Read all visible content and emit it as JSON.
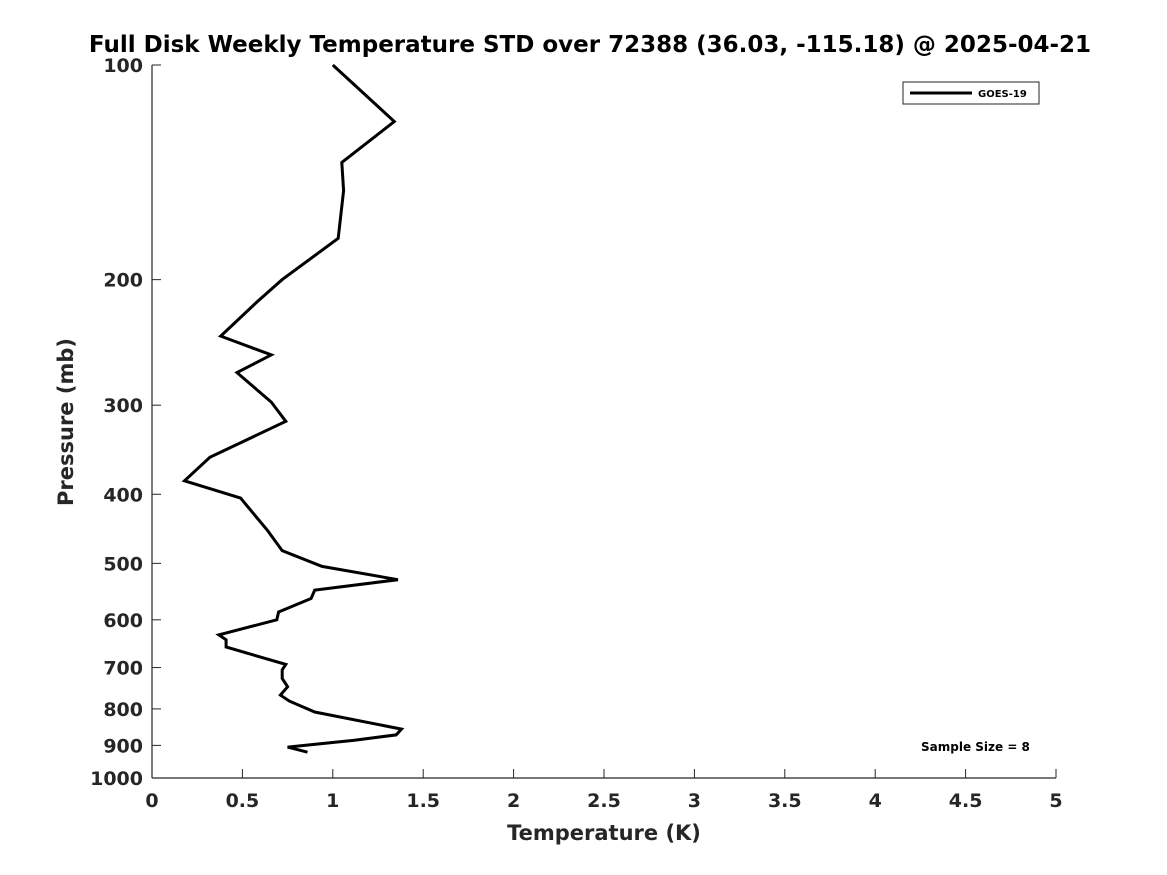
{
  "chart_data": {
    "type": "line",
    "title": "Full Disk Weekly Temperature STD over 72388 (36.03, -115.18) @ 2025-04-21",
    "xlabel": "Temperature (K)",
    "ylabel": "Pressure (mb)",
    "xlim": [
      0,
      5
    ],
    "ylim": [
      100,
      1000
    ],
    "y_scale": "log",
    "y_reversed": true,
    "x_ticks": [
      0,
      0.5,
      1,
      1.5,
      2,
      2.5,
      3,
      3.5,
      4,
      4.5,
      5
    ],
    "x_tick_labels": [
      "0",
      "0.5",
      "1",
      "1.5",
      "2",
      "2.5",
      "3",
      "3.5",
      "4",
      "4.5",
      "5"
    ],
    "y_ticks": [
      100,
      200,
      300,
      400,
      500,
      600,
      700,
      800,
      900,
      1000
    ],
    "y_tick_labels": [
      "100",
      "200",
      "300",
      "400",
      "500",
      "600",
      "700",
      "800",
      "900",
      "1000"
    ],
    "grid": false,
    "legend_position": "top-right",
    "series": [
      {
        "name": "GOES-19",
        "color": "#000000",
        "x": [
          1.0,
          1.34,
          1.05,
          1.06,
          1.03,
          0.72,
          0.58,
          0.38,
          0.66,
          0.47,
          0.66,
          0.74,
          0.32,
          0.18,
          0.49,
          0.64,
          0.72,
          0.94,
          1.36,
          0.9,
          0.88,
          0.7,
          0.69,
          0.37,
          0.41,
          0.41,
          0.74,
          0.72,
          0.72,
          0.75,
          0.71,
          0.76,
          0.9,
          1.38,
          1.35,
          1.12,
          0.75,
          0.86
        ],
        "y": [
          100,
          120,
          137,
          150,
          175,
          200,
          215,
          240,
          255,
          270,
          297,
          316,
          355,
          383,
          405,
          450,
          480,
          505,
          527,
          545,
          560,
          585,
          600,
          630,
          640,
          655,
          693,
          705,
          725,
          745,
          765,
          780,
          808,
          854,
          870,
          885,
          905,
          920
        ]
      }
    ],
    "annotations": [
      {
        "text": "Sample Size = 8",
        "position": "bottom-right"
      }
    ]
  }
}
